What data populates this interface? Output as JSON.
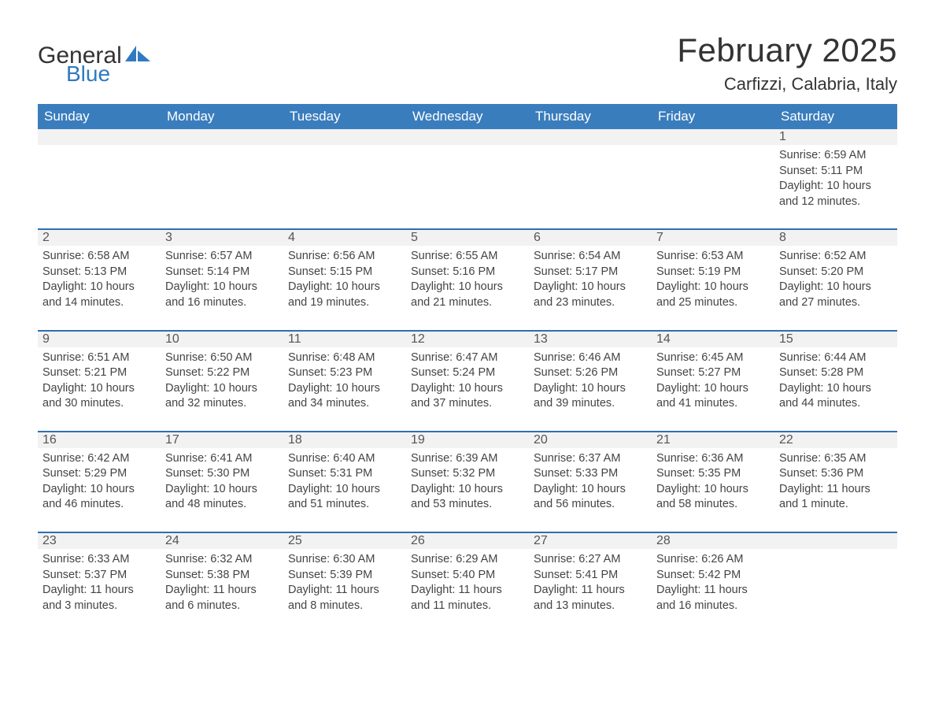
{
  "brand": {
    "left": "General",
    "right": "Blue",
    "logo_color": "#2f7ac0"
  },
  "title": "February 2025",
  "location": "Carfizzi, Calabria, Italy",
  "colors": {
    "header_bg": "#3a7dbd",
    "row_border": "#2f6fb0",
    "daynum_bg": "#f2f2f2",
    "text": "#333333",
    "muted": "#444444",
    "background": "#ffffff"
  },
  "weekdays": [
    "Sunday",
    "Monday",
    "Tuesday",
    "Wednesday",
    "Thursday",
    "Friday",
    "Saturday"
  ],
  "weeks": [
    [
      null,
      null,
      null,
      null,
      null,
      null,
      {
        "n": "1",
        "sunrise": "Sunrise: 6:59 AM",
        "sunset": "Sunset: 5:11 PM",
        "daylight": "Daylight: 10 hours and 12 minutes."
      }
    ],
    [
      {
        "n": "2",
        "sunrise": "Sunrise: 6:58 AM",
        "sunset": "Sunset: 5:13 PM",
        "daylight": "Daylight: 10 hours and 14 minutes."
      },
      {
        "n": "3",
        "sunrise": "Sunrise: 6:57 AM",
        "sunset": "Sunset: 5:14 PM",
        "daylight": "Daylight: 10 hours and 16 minutes."
      },
      {
        "n": "4",
        "sunrise": "Sunrise: 6:56 AM",
        "sunset": "Sunset: 5:15 PM",
        "daylight": "Daylight: 10 hours and 19 minutes."
      },
      {
        "n": "5",
        "sunrise": "Sunrise: 6:55 AM",
        "sunset": "Sunset: 5:16 PM",
        "daylight": "Daylight: 10 hours and 21 minutes."
      },
      {
        "n": "6",
        "sunrise": "Sunrise: 6:54 AM",
        "sunset": "Sunset: 5:17 PM",
        "daylight": "Daylight: 10 hours and 23 minutes."
      },
      {
        "n": "7",
        "sunrise": "Sunrise: 6:53 AM",
        "sunset": "Sunset: 5:19 PM",
        "daylight": "Daylight: 10 hours and 25 minutes."
      },
      {
        "n": "8",
        "sunrise": "Sunrise: 6:52 AM",
        "sunset": "Sunset: 5:20 PM",
        "daylight": "Daylight: 10 hours and 27 minutes."
      }
    ],
    [
      {
        "n": "9",
        "sunrise": "Sunrise: 6:51 AM",
        "sunset": "Sunset: 5:21 PM",
        "daylight": "Daylight: 10 hours and 30 minutes."
      },
      {
        "n": "10",
        "sunrise": "Sunrise: 6:50 AM",
        "sunset": "Sunset: 5:22 PM",
        "daylight": "Daylight: 10 hours and 32 minutes."
      },
      {
        "n": "11",
        "sunrise": "Sunrise: 6:48 AM",
        "sunset": "Sunset: 5:23 PM",
        "daylight": "Daylight: 10 hours and 34 minutes."
      },
      {
        "n": "12",
        "sunrise": "Sunrise: 6:47 AM",
        "sunset": "Sunset: 5:24 PM",
        "daylight": "Daylight: 10 hours and 37 minutes."
      },
      {
        "n": "13",
        "sunrise": "Sunrise: 6:46 AM",
        "sunset": "Sunset: 5:26 PM",
        "daylight": "Daylight: 10 hours and 39 minutes."
      },
      {
        "n": "14",
        "sunrise": "Sunrise: 6:45 AM",
        "sunset": "Sunset: 5:27 PM",
        "daylight": "Daylight: 10 hours and 41 minutes."
      },
      {
        "n": "15",
        "sunrise": "Sunrise: 6:44 AM",
        "sunset": "Sunset: 5:28 PM",
        "daylight": "Daylight: 10 hours and 44 minutes."
      }
    ],
    [
      {
        "n": "16",
        "sunrise": "Sunrise: 6:42 AM",
        "sunset": "Sunset: 5:29 PM",
        "daylight": "Daylight: 10 hours and 46 minutes."
      },
      {
        "n": "17",
        "sunrise": "Sunrise: 6:41 AM",
        "sunset": "Sunset: 5:30 PM",
        "daylight": "Daylight: 10 hours and 48 minutes."
      },
      {
        "n": "18",
        "sunrise": "Sunrise: 6:40 AM",
        "sunset": "Sunset: 5:31 PM",
        "daylight": "Daylight: 10 hours and 51 minutes."
      },
      {
        "n": "19",
        "sunrise": "Sunrise: 6:39 AM",
        "sunset": "Sunset: 5:32 PM",
        "daylight": "Daylight: 10 hours and 53 minutes."
      },
      {
        "n": "20",
        "sunrise": "Sunrise: 6:37 AM",
        "sunset": "Sunset: 5:33 PM",
        "daylight": "Daylight: 10 hours and 56 minutes."
      },
      {
        "n": "21",
        "sunrise": "Sunrise: 6:36 AM",
        "sunset": "Sunset: 5:35 PM",
        "daylight": "Daylight: 10 hours and 58 minutes."
      },
      {
        "n": "22",
        "sunrise": "Sunrise: 6:35 AM",
        "sunset": "Sunset: 5:36 PM",
        "daylight": "Daylight: 11 hours and 1 minute."
      }
    ],
    [
      {
        "n": "23",
        "sunrise": "Sunrise: 6:33 AM",
        "sunset": "Sunset: 5:37 PM",
        "daylight": "Daylight: 11 hours and 3 minutes."
      },
      {
        "n": "24",
        "sunrise": "Sunrise: 6:32 AM",
        "sunset": "Sunset: 5:38 PM",
        "daylight": "Daylight: 11 hours and 6 minutes."
      },
      {
        "n": "25",
        "sunrise": "Sunrise: 6:30 AM",
        "sunset": "Sunset: 5:39 PM",
        "daylight": "Daylight: 11 hours and 8 minutes."
      },
      {
        "n": "26",
        "sunrise": "Sunrise: 6:29 AM",
        "sunset": "Sunset: 5:40 PM",
        "daylight": "Daylight: 11 hours and 11 minutes."
      },
      {
        "n": "27",
        "sunrise": "Sunrise: 6:27 AM",
        "sunset": "Sunset: 5:41 PM",
        "daylight": "Daylight: 11 hours and 13 minutes."
      },
      {
        "n": "28",
        "sunrise": "Sunrise: 6:26 AM",
        "sunset": "Sunset: 5:42 PM",
        "daylight": "Daylight: 11 hours and 16 minutes."
      },
      null
    ]
  ]
}
